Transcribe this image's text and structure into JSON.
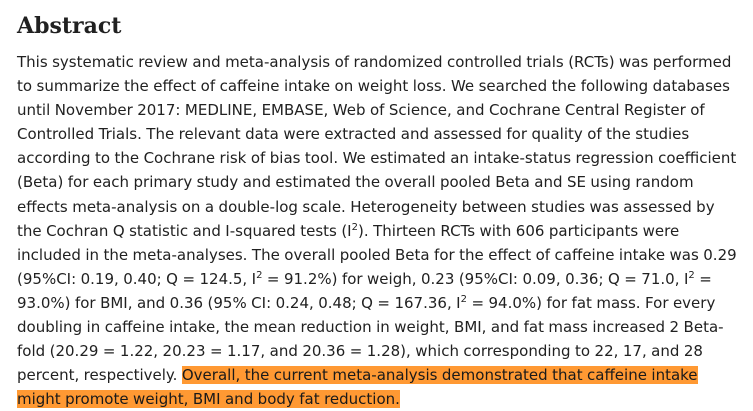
{
  "abstract": {
    "heading": "Abstract",
    "t1": "This systematic review and meta-analysis of randomized controlled trials (RCTs) was performed to summarize the effect of caffeine intake on weight loss. We searched the following databases until November 2017: MEDLINE, EMBASE, Web of Science, and Cochrane Central Register of Controlled Trials. The relevant data were extracted and assessed for quality of the studies according to the Cochrane risk of bias tool. We estimated an intake-status regression coefficient (Beta) for each primary study and estimated the overall pooled Beta and SE using random effects meta-analysis on a double-log scale. Heterogeneity between studies was assessed by the Cochran Q statistic and I-squared tests (I",
    "sup1": "2",
    "t2": "). Thirteen RCTs with 606 participants were included in the meta-analyses. The overall pooled Beta for the effect of caffeine intake was 0.29 (95%CI: 0.19, 0.40; Q = 124.5, I",
    "sup2": "2",
    "t3": " = 91.2%) for weigh, 0.23 (95%CI: 0.09, 0.36; Q = 71.0, I",
    "sup3": "2",
    "t4": " = 93.0%) for BMI, and 0.36 (95% CI: 0.24, 0.48; Q = 167.36, I",
    "sup4": "2",
    "t5": " = 94.0%) for fat mass. For every doubling in caffeine intake, the mean reduction in weight, BMI, and fat mass increased 2 Beta-fold (20.29 = 1.22, 20.23 = 1.17, and 20.36 = 1.28), which corresponding to 22, 17, and 28 percent, respectively. ",
    "highlighted": "Overall, the current meta-analysis demonstrated that caffeine intake might promote weight, BMI and body fat reduction.",
    "highlight_color": "#ff9933"
  }
}
